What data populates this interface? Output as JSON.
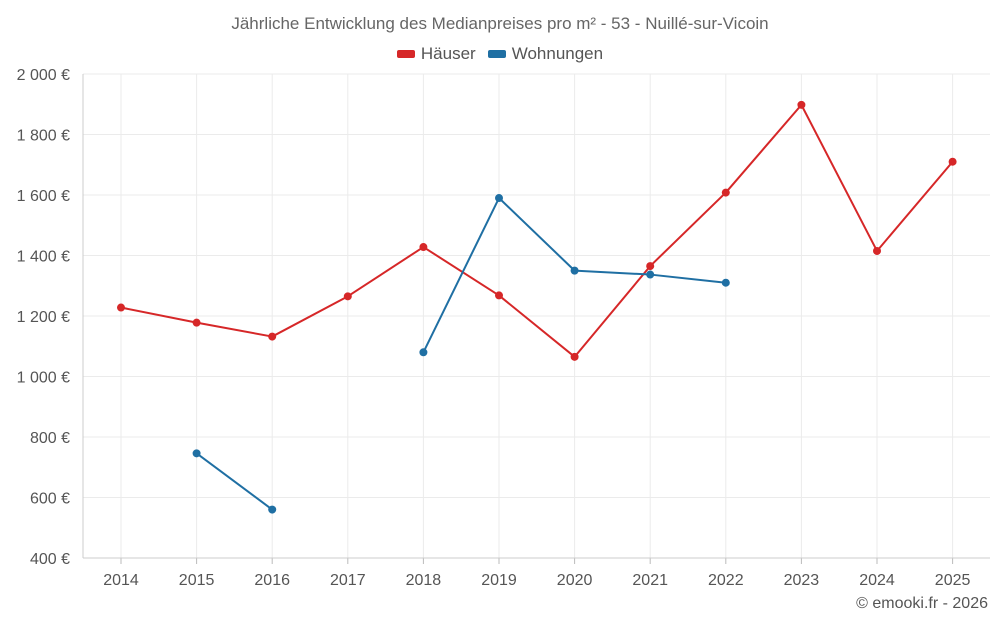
{
  "chart_data": {
    "type": "line",
    "title": "Jährliche Entwicklung des Medianpreises pro m² - 53 - Nuillé-sur-Vicoin",
    "categories": [
      "2014",
      "2015",
      "2016",
      "2017",
      "2018",
      "2019",
      "2020",
      "2021",
      "2022",
      "2023",
      "2024",
      "2025"
    ],
    "y_ticks": [
      "2 000 €",
      "1 800 €",
      "1 600 €",
      "1 400 €",
      "1 200 €",
      "1 000 €",
      "800 €",
      "600 €",
      "400 €"
    ],
    "ylim": [
      400,
      2000
    ],
    "grid": true,
    "legend_position": "top-center",
    "series": [
      {
        "name": "Häuser",
        "color": "#d62728",
        "values": [
          1228,
          1178,
          1132,
          1265,
          1428,
          1268,
          1065,
          1365,
          1608,
          1898,
          1415,
          1710
        ]
      },
      {
        "name": "Wohnungen",
        "color": "#1f6fa3",
        "values": [
          null,
          746,
          560,
          null,
          1080,
          1590,
          1350,
          1337,
          1310,
          null,
          null,
          null
        ]
      }
    ]
  },
  "credit": "© emooki.fr - 2026"
}
